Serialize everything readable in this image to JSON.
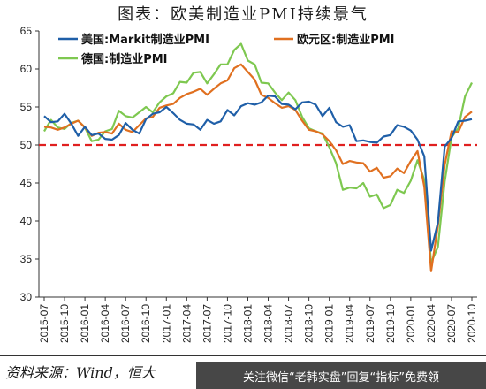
{
  "title": "图表：欧美制造业PMI持续景气",
  "source": "资料来源：Wind，恒大",
  "watermark": "关注微信“老韩实盘”回复“指标”免费领",
  "chart_data": {
    "type": "line",
    "ylim": [
      30,
      65
    ],
    "y_ticks": [
      30,
      35,
      40,
      45,
      50,
      55,
      60,
      65
    ],
    "reference_line": {
      "value": 50,
      "color": "#e02020",
      "style": "dashed"
    },
    "x": [
      "2015-07",
      "2015-08",
      "2015-09",
      "2015-10",
      "2015-11",
      "2015-12",
      "2016-01",
      "2016-02",
      "2016-03",
      "2016-04",
      "2016-05",
      "2016-06",
      "2016-07",
      "2016-08",
      "2016-09",
      "2016-10",
      "2016-11",
      "2016-12",
      "2017-01",
      "2017-02",
      "2017-03",
      "2017-04",
      "2017-05",
      "2017-06",
      "2017-07",
      "2017-08",
      "2017-09",
      "2017-10",
      "2017-11",
      "2017-12",
      "2018-01",
      "2018-02",
      "2018-03",
      "2018-04",
      "2018-05",
      "2018-06",
      "2018-07",
      "2018-08",
      "2018-09",
      "2018-10",
      "2018-11",
      "2018-12",
      "2019-01",
      "2019-02",
      "2019-03",
      "2019-04",
      "2019-05",
      "2019-06",
      "2019-07",
      "2019-08",
      "2019-09",
      "2019-10",
      "2019-11",
      "2019-12",
      "2020-01",
      "2020-02",
      "2020-03",
      "2020-04",
      "2020-05",
      "2020-06",
      "2020-07",
      "2020-08",
      "2020-09",
      "2020-10"
    ],
    "x_tick_labels": [
      "2015-07",
      "2015-10",
      "2016-01",
      "2016-04",
      "2016-07",
      "2016-10",
      "2017-01",
      "2017-04",
      "2017-07",
      "2017-10",
      "2018-01",
      "2018-04",
      "2018-07",
      "2018-10",
      "2019-01",
      "2019-04",
      "2019-07",
      "2019-10",
      "2020-01",
      "2020-04",
      "2020-07",
      "2020-10"
    ],
    "legend_position": "top",
    "grid": false,
    "series": [
      {
        "name": "美国:Markit制造业PMI",
        "color": "#1f5fa8",
        "values": [
          53.8,
          53.0,
          53.1,
          54.1,
          52.8,
          51.2,
          52.4,
          51.3,
          51.5,
          50.8,
          50.7,
          51.3,
          52.9,
          52.0,
          51.5,
          53.4,
          54.1,
          54.3,
          55.0,
          54.2,
          53.3,
          52.8,
          52.7,
          52.0,
          53.3,
          52.8,
          53.1,
          54.6,
          53.9,
          55.1,
          55.5,
          55.3,
          55.6,
          56.5,
          56.4,
          55.4,
          55.3,
          54.7,
          55.6,
          55.7,
          55.3,
          53.8,
          54.9,
          53.0,
          52.4,
          52.6,
          50.5,
          50.6,
          50.4,
          50.3,
          51.1,
          51.3,
          52.6,
          52.4,
          51.9,
          50.7,
          48.5,
          36.1,
          39.8,
          49.8,
          50.9,
          53.1,
          53.2,
          53.4
        ]
      },
      {
        "name": "欧元区:制造业PMI",
        "color": "#e07020",
        "values": [
          52.4,
          52.3,
          52.0,
          52.3,
          52.8,
          53.2,
          52.3,
          51.2,
          51.6,
          51.7,
          51.5,
          52.8,
          52.0,
          51.7,
          52.6,
          53.5,
          53.7,
          54.9,
          55.2,
          55.4,
          56.2,
          56.7,
          57.0,
          57.4,
          56.6,
          57.4,
          58.1,
          58.5,
          60.1,
          60.6,
          59.6,
          58.6,
          56.6,
          56.2,
          55.5,
          54.9,
          55.1,
          54.6,
          53.2,
          52.0,
          51.8,
          51.4,
          50.5,
          49.3,
          47.5,
          47.9,
          47.7,
          47.6,
          46.5,
          47.0,
          45.7,
          45.9,
          46.9,
          46.3,
          47.9,
          49.2,
          44.5,
          33.4,
          39.4,
          47.4,
          51.8,
          51.7,
          53.7,
          54.4
        ]
      },
      {
        "name": "德国:制造业PMI",
        "color": "#7ec850",
        "values": [
          51.8,
          53.3,
          52.3,
          52.1,
          52.9,
          53.2,
          52.3,
          50.5,
          50.7,
          51.8,
          52.1,
          54.5,
          53.8,
          53.6,
          54.3,
          55.0,
          54.3,
          55.6,
          56.4,
          56.8,
          58.3,
          58.2,
          59.5,
          59.6,
          58.1,
          59.3,
          60.6,
          60.6,
          62.5,
          63.3,
          61.1,
          60.6,
          58.2,
          58.1,
          56.9,
          55.9,
          56.9,
          55.9,
          53.7,
          52.2,
          51.8,
          51.5,
          49.7,
          47.6,
          44.1,
          44.4,
          44.3,
          45.0,
          43.2,
          43.5,
          41.7,
          42.1,
          44.1,
          43.7,
          45.3,
          48.0,
          45.4,
          34.5,
          36.6,
          45.2,
          51.0,
          52.2,
          56.4,
          58.2
        ]
      }
    ]
  }
}
